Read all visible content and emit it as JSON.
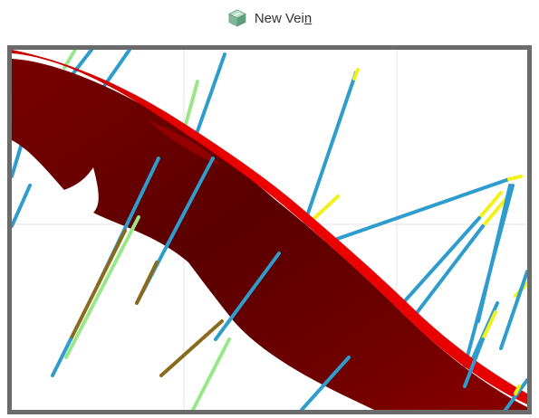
{
  "window": {
    "title_main": "New Vei",
    "title_accel": "n",
    "icon": "vein-cube-icon"
  },
  "viewport": {
    "content": "3d-scene-vein-and-drillholes",
    "colors": {
      "vein_dark": "#5a0000",
      "vein_red": "#e00000",
      "drillhole_blue": "#2e9ccc",
      "drillhole_light_green": "#98e88a",
      "drillhole_olive": "#8a6b1e",
      "drillhole_yellow": "#f2f21a",
      "grid": "#e6e6e6",
      "border": "#6b6b6b"
    }
  }
}
